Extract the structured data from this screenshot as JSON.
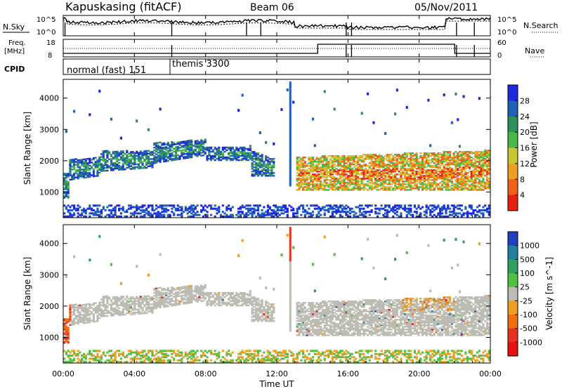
{
  "header": {
    "station": "Kapuskasing (fitACF)",
    "beam": "Beam 06",
    "date": "05/Nov/2011"
  },
  "status_panels": {
    "nsky": {
      "label": "N.Sky",
      "tick_top": "10^5",
      "tick_bottom": "10^0",
      "right_label": "N.Search",
      "right_tick_top": "10^5",
      "right_tick_bottom": "10^0"
    },
    "freq": {
      "label_line1": "Freq.",
      "label_line2": "[MHz]",
      "tick_top": "18",
      "tick_bottom": "8",
      "right_label": "Nave",
      "right_tick_top": "60",
      "right_tick_bottom": "0"
    },
    "cpid": {
      "label": "CPID",
      "segments": [
        {
          "name": "normal (fast) 151",
          "start_hour": 0
        },
        {
          "name": "themis 3300",
          "start_hour": 6
        }
      ]
    }
  },
  "chart_data": [
    {
      "type": "heatmap",
      "name": "power",
      "ylabel": "Slant Range [km]",
      "ylim": [
        180,
        4600
      ],
      "y_ticks": [
        1000,
        2000,
        3000,
        4000
      ],
      "xlim_hours": [
        0,
        24
      ],
      "colorbar": {
        "label": "Power [dB]",
        "ticks": [
          "4",
          "8",
          "12",
          "16",
          "20",
          "24",
          "28"
        ],
        "colors": [
          "#1f28e0",
          "#1f60b8",
          "#2f8f5c",
          "#48b848",
          "#c8c830",
          "#f0a020",
          "#f06018",
          "#e82010"
        ]
      }
    },
    {
      "type": "heatmap",
      "name": "velocity",
      "ylabel": "Slant Range [km]",
      "ylim": [
        180,
        4600
      ],
      "y_ticks": [
        1000,
        2000,
        3000,
        4000
      ],
      "xlim_hours": [
        0,
        24
      ],
      "colorbar": {
        "label": "Velocity [m s^-1]",
        "ticks": [
          "1000",
          "500",
          "100",
          "25",
          "-25",
          "-100",
          "-500",
          "-1000"
        ],
        "colors": [
          "#2040c0",
          "#2080a0",
          "#30a060",
          "#50c040",
          "#bcbcb4",
          "#f0a020",
          "#f07010",
          "#e83020",
          "#e81010"
        ]
      }
    }
  ],
  "xaxis": {
    "label": "Time UT",
    "tick_labels": [
      "00:00",
      "04:00",
      "08:00",
      "12:00",
      "16:00",
      "20:00",
      "00:00"
    ]
  }
}
